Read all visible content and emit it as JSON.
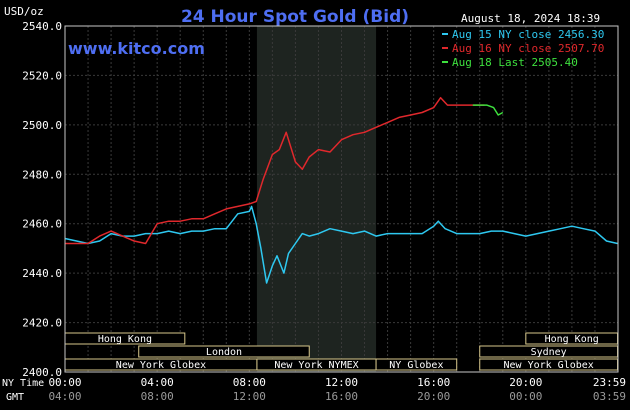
{
  "chart_data": {
    "type": "line",
    "title": "24 Hour Spot Gold (Bid)",
    "ylabel": "USD/oz",
    "timestamp": "August 18, 2024 18:39",
    "website": "www.kitco.com",
    "ylim": [
      2400,
      2540
    ],
    "yticks": [
      "2540.0",
      "2520.0",
      "2500.0",
      "2480.0",
      "2460.0",
      "2440.0",
      "2420.0",
      "2400.0"
    ],
    "ytick_values": [
      2540,
      2520,
      2500,
      2480,
      2460,
      2440,
      2420,
      2400
    ],
    "xlim": [
      0,
      24
    ],
    "x_row1_label": "NY Time",
    "x_row2_label": "GMT",
    "xticks_ny": [
      "00:00",
      "04:00",
      "08:00",
      "12:00",
      "16:00",
      "20:00",
      "23:59"
    ],
    "xticks_gmt": [
      "04:00",
      "08:00",
      "12:00",
      "16:00",
      "20:00",
      "00:00",
      "03:59"
    ],
    "xtick_hours": [
      0,
      4,
      8,
      12,
      16,
      20,
      23.98
    ],
    "grid": true,
    "shaded_hours": [
      8.33,
      13.5
    ],
    "legend_position": "top-right",
    "series": [
      {
        "name": "Aug 15 NY close 2456.30",
        "color": "#2ec8f0",
        "x": [
          0,
          0.5,
          1,
          1.5,
          2,
          2.5,
          3,
          3.5,
          4,
          4.5,
          5,
          5.5,
          6,
          6.5,
          7,
          7.5,
          8,
          8.1,
          8.3,
          8.5,
          8.75,
          9,
          9.2,
          9.5,
          9.7,
          10,
          10.3,
          10.6,
          11,
          11.5,
          12,
          12.5,
          13,
          13.5,
          14,
          14.5,
          15,
          15.5,
          16,
          16.2,
          16.5,
          17,
          17.5,
          18,
          18.5,
          19,
          19.5,
          20,
          20.5,
          21,
          21.5,
          22,
          22.5,
          23,
          23.5,
          23.98
        ],
        "values": [
          2454,
          2453,
          2452,
          2453,
          2456,
          2455,
          2455,
          2456,
          2456,
          2457,
          2456,
          2457,
          2457,
          2458,
          2458,
          2464,
          2465,
          2467,
          2460,
          2450,
          2436,
          2443,
          2447,
          2440,
          2448,
          2452,
          2456,
          2455,
          2456,
          2458,
          2457,
          2456,
          2457,
          2455,
          2456,
          2456,
          2456,
          2456,
          2459,
          2461,
          2458,
          2456,
          2456,
          2456,
          2457,
          2457,
          2456,
          2455,
          2456,
          2457,
          2458,
          2459,
          2458,
          2457,
          2453,
          2452
        ]
      },
      {
        "name": "Aug 16 NY close 2507.70",
        "color": "#e0282c",
        "x": [
          0,
          0.5,
          1,
          1.5,
          2,
          2.5,
          3,
          3.5,
          4,
          4.5,
          5,
          5.5,
          6,
          6.5,
          7,
          7.5,
          8,
          8.3,
          8.6,
          9,
          9.3,
          9.6,
          10,
          10.3,
          10.6,
          11,
          11.5,
          12,
          12.5,
          13,
          13.5,
          14,
          14.5,
          15,
          15.5,
          16,
          16.3,
          16.6,
          17,
          17.5,
          18,
          18.2
        ],
        "values": [
          2452,
          2452,
          2452,
          2455,
          2457,
          2455,
          2453,
          2452,
          2460,
          2461,
          2461,
          2462,
          2462,
          2464,
          2466,
          2467,
          2468,
          2469,
          2478,
          2488,
          2490,
          2497,
          2485,
          2482,
          2487,
          2490,
          2489,
          2494,
          2496,
          2497,
          2499,
          2501,
          2503,
          2504,
          2505,
          2507,
          2511,
          2508,
          2508,
          2508,
          2508,
          2508
        ]
      },
      {
        "name": "Aug 18 Last 2505.40",
        "color": "#3ee03e",
        "x": [
          17.7,
          18,
          18.3,
          18.6,
          18.8,
          19
        ],
        "values": [
          2508,
          2508,
          2508,
          2507,
          2504,
          2505
        ]
      }
    ],
    "session_bars": [
      {
        "label": "Hong Kong",
        "start_hour": 0,
        "end_hour": 5.2,
        "row": 0
      },
      {
        "label": "London",
        "start_hour": 3.2,
        "end_hour": 10.6,
        "row": 1
      },
      {
        "label": "New York Globex",
        "start_hour": 0,
        "end_hour": 8.33,
        "row": 2
      },
      {
        "label": "New York NYMEX",
        "start_hour": 8.33,
        "end_hour": 13.5,
        "row": 2
      },
      {
        "label": "NY Globex",
        "start_hour": 13.5,
        "end_hour": 17.0,
        "row": 2
      },
      {
        "label": "Hong Kong",
        "start_hour": 20.0,
        "end_hour": 23.98,
        "row": 0
      },
      {
        "label": "Sydney",
        "start_hour": 18.0,
        "end_hour": 23.98,
        "row": 1
      },
      {
        "label": "New York Globex",
        "start_hour": 18.0,
        "end_hour": 23.98,
        "row": 2
      }
    ]
  },
  "colors": {
    "background": "#000000",
    "plot_background": "#000000",
    "grid": "#3a3a3a",
    "shaded_region": "#1e2420",
    "frame": "#c8c8c8",
    "title": "#4e6ef2",
    "website": "#4e6ef2",
    "text": "#ffffff",
    "session_border": "#d8c88c"
  }
}
